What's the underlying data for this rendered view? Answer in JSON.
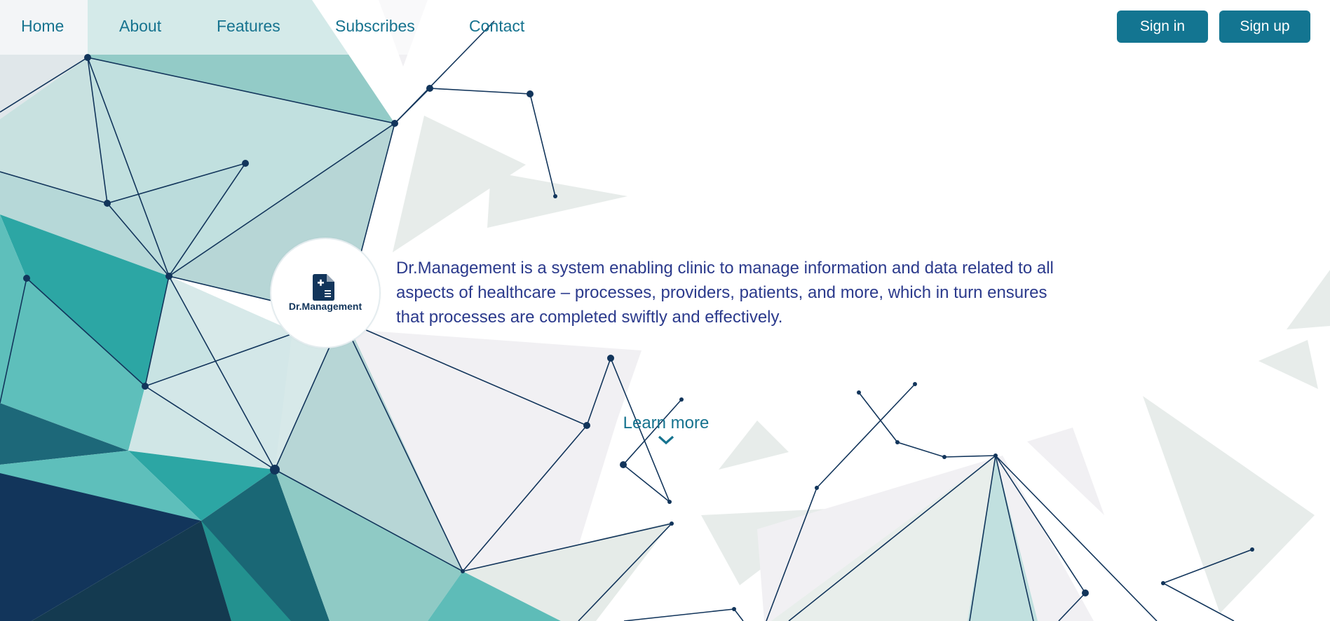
{
  "nav": {
    "links": [
      "Home",
      "About",
      "Features",
      "Subscribes",
      "Contact"
    ]
  },
  "auth": {
    "signin_label": "Sign in",
    "signup_label": "Sign up"
  },
  "logo": {
    "text": "Dr.Management",
    "icon": "medical-document-icon"
  },
  "hero": {
    "description": "Dr.Management is a system enabling clinic to manage information and data related to all aspects of healthcare – processes, providers, patients, and more, which in turn ensures that processes are completed swiftly and effectively."
  },
  "cta": {
    "learn_more_label": "Learn more",
    "icon": "chevron-down-icon"
  },
  "colors": {
    "accent": "#137591",
    "nav_text": "#16738f",
    "hero_text": "#2b3a8c",
    "dark_navy": "#12355b",
    "teal": "#2ca6a4"
  }
}
